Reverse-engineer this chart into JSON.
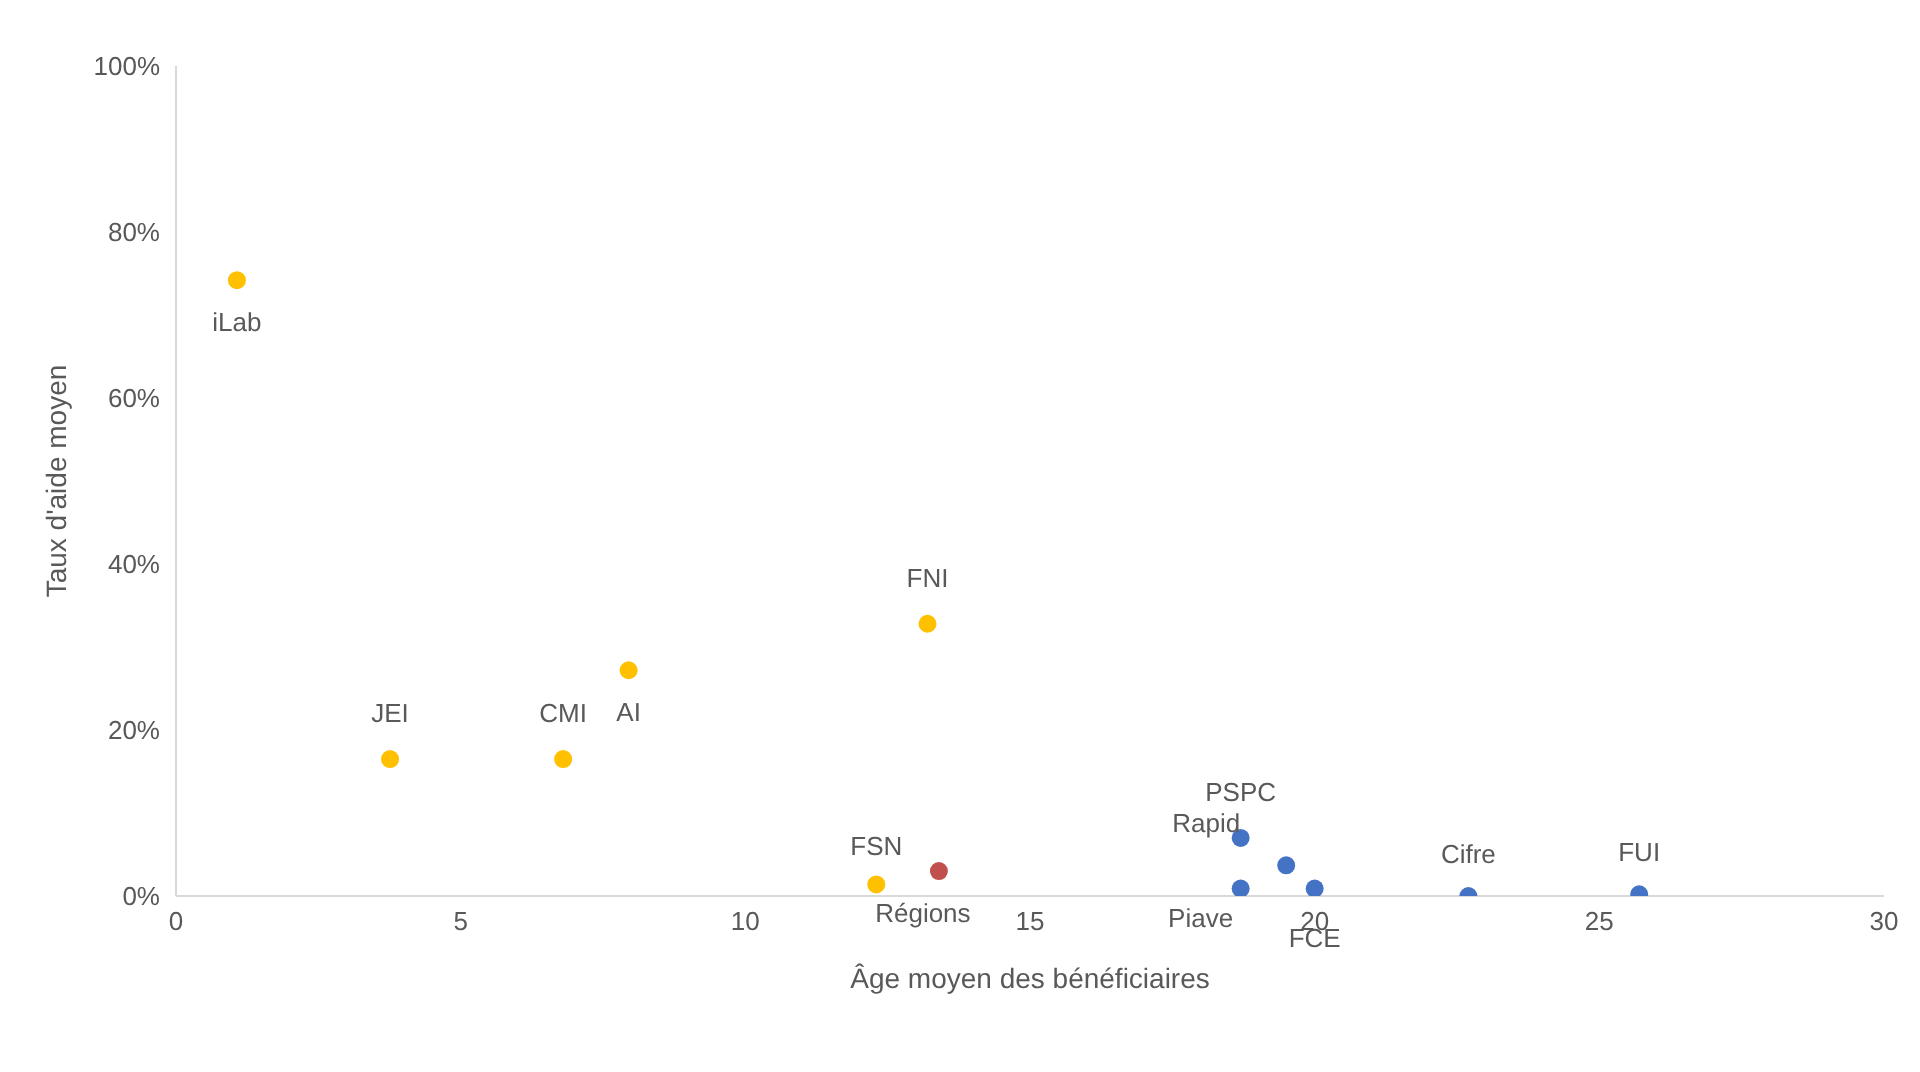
{
  "chart_data": {
    "type": "scatter",
    "xlabel": "Âge moyen des bénéficiaires",
    "ylabel": "Taux d'aide moyen",
    "xlim": [
      0,
      30
    ],
    "xticks": [
      0,
      5,
      10,
      15,
      20,
      25,
      30
    ],
    "ylim": [
      0,
      100
    ],
    "yticks": [
      {
        "value": 0,
        "label": "0%"
      },
      {
        "value": 20,
        "label": "20%"
      },
      {
        "value": 40,
        "label": "40%"
      },
      {
        "value": 60,
        "label": "60%"
      },
      {
        "value": 80,
        "label": "80%"
      },
      {
        "value": 100,
        "label": "100%"
      }
    ],
    "grid": false,
    "marker": "circle",
    "series": [
      {
        "color": "#ffc000",
        "x": [
          1.07,
          3.76,
          6.8,
          7.95,
          13.2,
          12.3
        ],
        "values": [
          74.2,
          16.5,
          16.5,
          27.2,
          32.8,
          1.4
        ]
      },
      {
        "color": "#c0504d",
        "x": [
          13.4
        ],
        "values": [
          3.0
        ]
      },
      {
        "color": "#4472c4",
        "x": [
          18.7,
          19.5,
          18.7,
          20.0,
          22.7,
          25.7
        ],
        "values": [
          7.0,
          3.7,
          0.9,
          0.9,
          0,
          0.2
        ]
      }
    ],
    "annotations": [
      {
        "text": "iLab",
        "x": 1.07,
        "y": 74.2
      },
      {
        "text": "JEI",
        "x": 3.76,
        "y": 16.5
      },
      {
        "text": "CMI",
        "x": 6.8,
        "y": 16.5
      },
      {
        "text": "AI",
        "x": 7.95,
        "y": 27.2
      },
      {
        "text": "FNI",
        "x": 13.2,
        "y": 32.8
      },
      {
        "text": "FSN",
        "x": 12.3,
        "y": 1.4
      },
      {
        "text": "Régions",
        "x": 13.4,
        "y": 3.0
      },
      {
        "text": "PSPC",
        "x": 18.7,
        "y": 7.0
      },
      {
        "text": "Rapid",
        "x": 19.5,
        "y": 3.7
      },
      {
        "text": "Piave",
        "x": 18.7,
        "y": 0.9
      },
      {
        "text": "FCE",
        "x": 20.0,
        "y": 0.9
      },
      {
        "text": "Cifre",
        "x": 22.7,
        "y": 0
      },
      {
        "text": "FUI",
        "x": 25.7,
        "y": 0.2
      }
    ]
  }
}
